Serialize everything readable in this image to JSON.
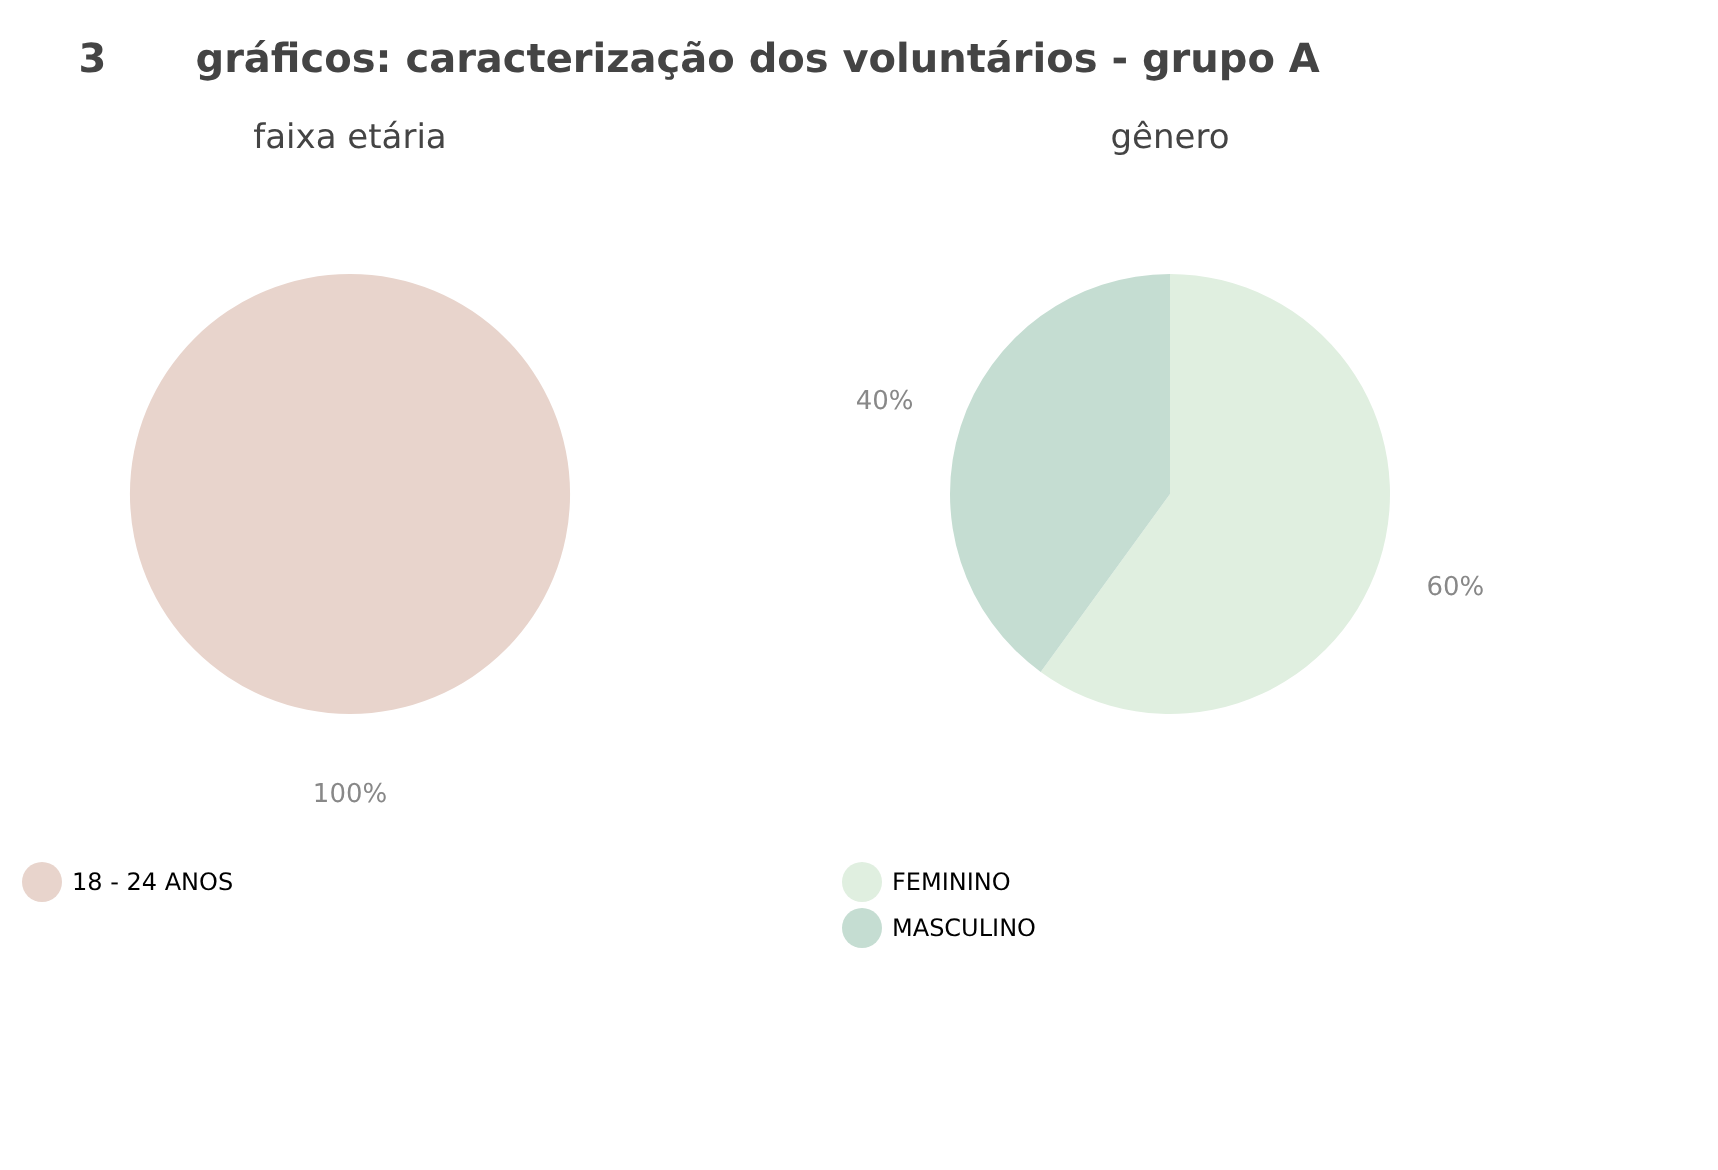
{
  "chart_data": [
    {
      "type": "pie",
      "title": "faixa etária",
      "annotations": [
        "3",
        "gráficos: caracterização dos voluntários - grupo A"
      ],
      "categories": [
        "18 - 24 ANOS"
      ],
      "values": [
        100
      ],
      "colors": [
        "#e8d4cc"
      ],
      "value_labels": [
        "100%"
      ],
      "legend": "bottom"
    },
    {
      "type": "pie",
      "title": "gênero",
      "categories": [
        "FEMININO",
        "MASCULINO"
      ],
      "values": [
        60,
        40
      ],
      "colors": [
        "#e0efe0",
        "#c5ddd2"
      ],
      "value_labels": [
        "60%",
        "40%"
      ],
      "legend": "bottom"
    }
  ]
}
